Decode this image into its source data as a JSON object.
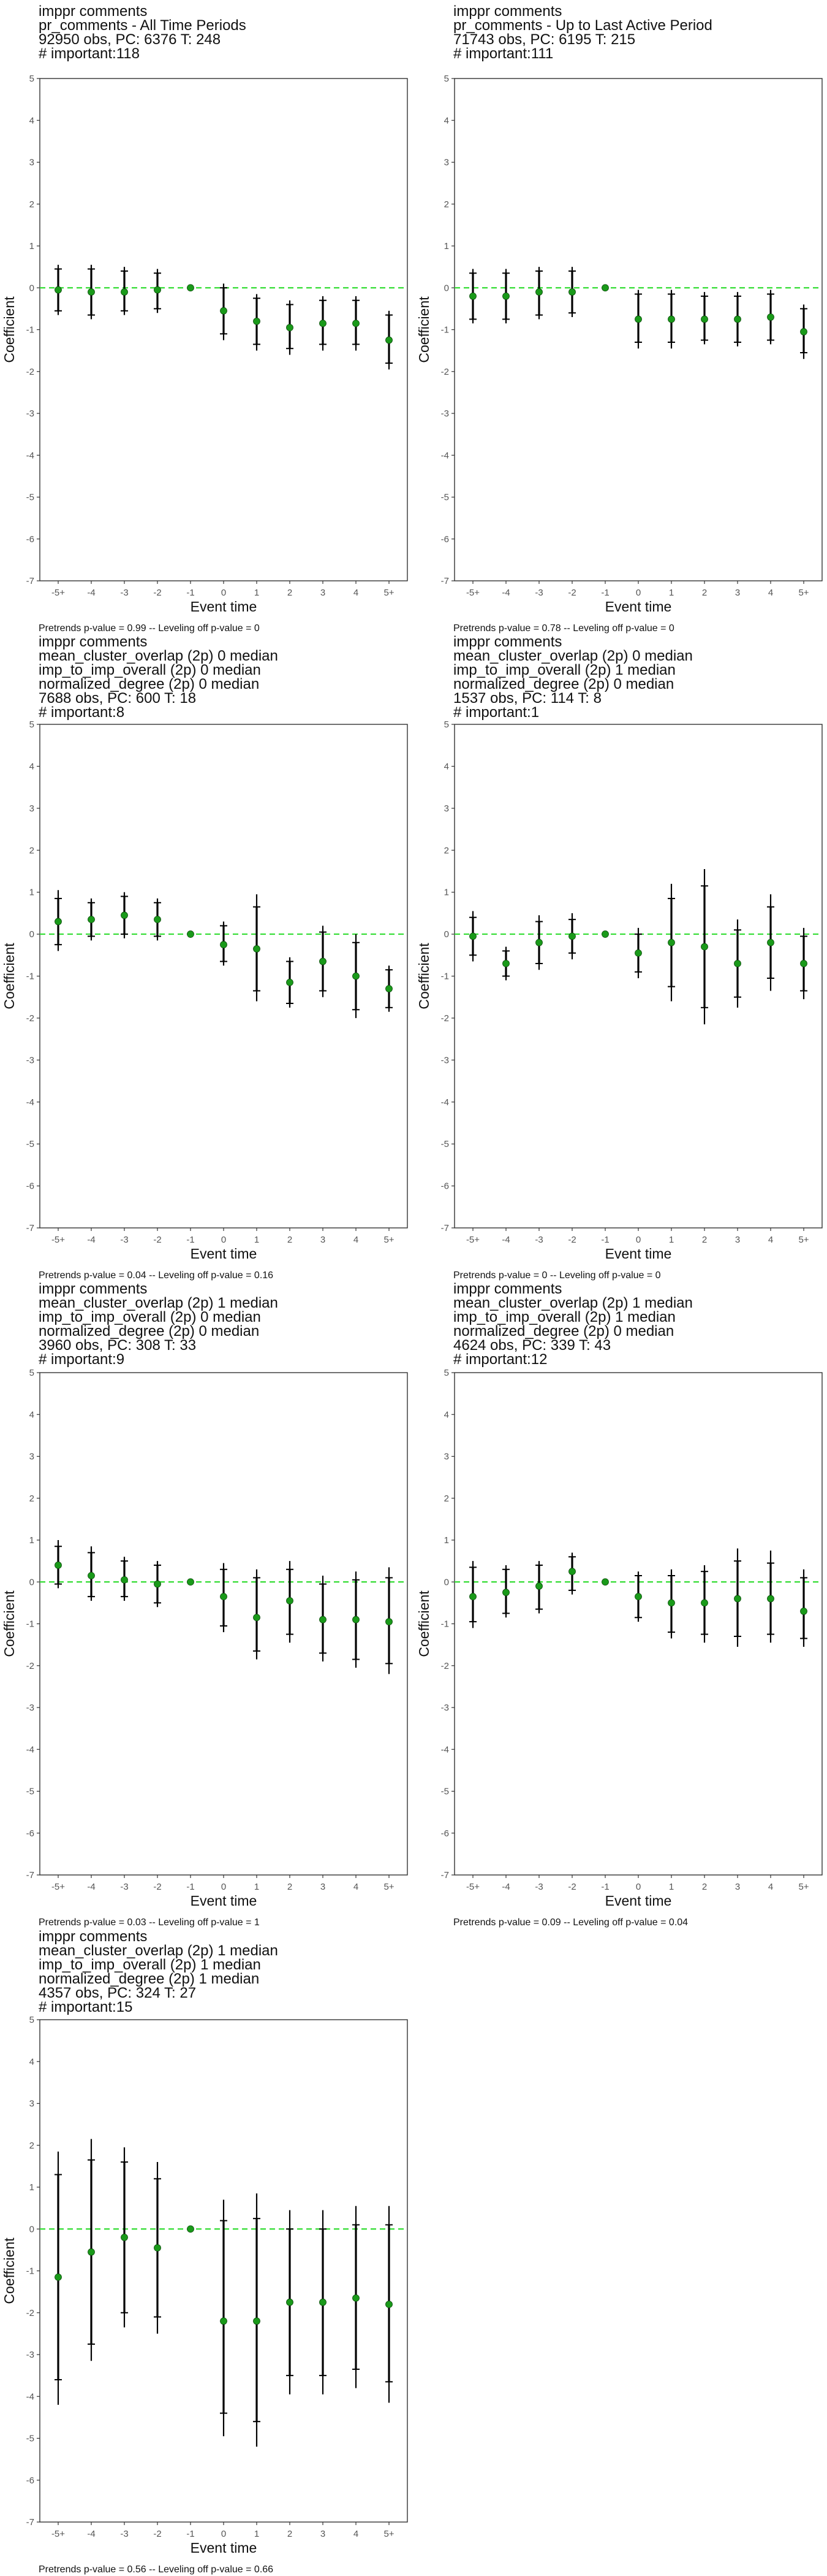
{
  "chart_data": [
    {
      "type": "scatter",
      "title_lines": [
        " imppr comments",
        "pr_comments - All Time Periods",
        "92950 obs, PC: 6376 T: 248",
        "# important:118"
      ],
      "xlabel": "Event time",
      "ylabel": "Coefficient",
      "categories": [
        "-5+",
        "-4",
        "-3",
        "-2",
        "-1",
        "0",
        "1",
        "2",
        "3",
        "4",
        "5+"
      ],
      "ylim": [
        -7,
        5
      ],
      "yticks": [
        "-7",
        "-6",
        "-5",
        "-4",
        "-3",
        "-2",
        "-1",
        "0",
        "1",
        "2",
        "3",
        "4",
        "5"
      ],
      "reference_line": 0,
      "estimates": [
        -0.05,
        -0.1,
        -0.1,
        -0.05,
        0,
        -0.55,
        -0.8,
        -0.95,
        -0.85,
        -0.85,
        -1.25
      ],
      "ci95_low": [
        -0.65,
        -0.75,
        -0.65,
        -0.6,
        0,
        -1.25,
        -1.5,
        -1.6,
        -1.5,
        -1.5,
        -1.95
      ],
      "ci95_high": [
        0.55,
        0.55,
        0.5,
        0.45,
        0,
        0.1,
        -0.15,
        -0.3,
        -0.2,
        -0.2,
        -0.55
      ],
      "ci90_low": [
        -0.55,
        -0.65,
        -0.55,
        -0.5,
        0,
        -1.1,
        -1.35,
        -1.45,
        -1.35,
        -1.35,
        -1.8
      ],
      "ci90_high": [
        0.45,
        0.45,
        0.4,
        0.35,
        0,
        0,
        -0.25,
        -0.4,
        -0.3,
        -0.3,
        -0.65
      ],
      "footnote": "Pretrends p-value = 0.99 -- Leveling off p-value = 0"
    },
    {
      "type": "scatter",
      "title_lines": [
        " imppr comments",
        "pr_comments - Up to Last Active Period",
        "71743 obs, PC: 6195 T: 215",
        "# important:111"
      ],
      "xlabel": "Event time",
      "ylabel": "Coefficient",
      "categories": [
        "-5+",
        "-4",
        "-3",
        "-2",
        "-1",
        "0",
        "1",
        "2",
        "3",
        "4",
        "5+"
      ],
      "ylim": [
        -7,
        5
      ],
      "yticks": [
        "-7",
        "-6",
        "-5",
        "-4",
        "-3",
        "-2",
        "-1",
        "0",
        "1",
        "2",
        "3",
        "4",
        "5"
      ],
      "reference_line": 0,
      "estimates": [
        -0.2,
        -0.2,
        -0.1,
        -0.1,
        0,
        -0.75,
        -0.75,
        -0.75,
        -0.75,
        -0.7,
        -1.05
      ],
      "ci95_low": [
        -0.85,
        -0.85,
        -0.75,
        -0.7,
        0,
        -1.45,
        -1.45,
        -1.35,
        -1.4,
        -1.35,
        -1.7
      ],
      "ci95_high": [
        0.45,
        0.45,
        0.5,
        0.5,
        0,
        -0.05,
        -0.05,
        -0.1,
        -0.1,
        -0.05,
        -0.4
      ],
      "ci90_low": [
        -0.75,
        -0.75,
        -0.65,
        -0.6,
        0,
        -1.3,
        -1.3,
        -1.25,
        -1.3,
        -1.25,
        -1.55
      ],
      "ci90_high": [
        0.35,
        0.35,
        0.4,
        0.4,
        0,
        -0.15,
        -0.15,
        -0.2,
        -0.2,
        -0.15,
        -0.5
      ],
      "footnote": "Pretrends p-value = 0.78 -- Leveling off p-value = 0"
    },
    {
      "type": "scatter",
      "title_lines": [
        " imppr comments",
        "mean_cluster_overlap (2p) 0 median",
        "imp_to_imp_overall (2p) 0 median",
        "normalized_degree (2p) 0 median",
        "7688 obs, PC: 600 T: 18",
        "# important:8"
      ],
      "xlabel": "Event time",
      "ylabel": "Coefficient",
      "categories": [
        "-5+",
        "-4",
        "-3",
        "-2",
        "-1",
        "0",
        "1",
        "2",
        "3",
        "4",
        "5+"
      ],
      "ylim": [
        -7,
        5
      ],
      "yticks": [
        "-7",
        "-6",
        "-5",
        "-4",
        "-3",
        "-2",
        "-1",
        "0",
        "1",
        "2",
        "3",
        "4",
        "5"
      ],
      "reference_line": 0,
      "estimates": [
        0.3,
        0.35,
        0.45,
        0.35,
        0,
        -0.25,
        -0.35,
        -1.15,
        -0.65,
        -1.0,
        -1.3
      ],
      "ci95_low": [
        -0.4,
        -0.15,
        -0.1,
        -0.15,
        0,
        -0.75,
        -1.6,
        -1.75,
        -1.5,
        -2.0,
        -1.85
      ],
      "ci95_high": [
        1.05,
        0.85,
        1.0,
        0.85,
        0,
        0.3,
        0.95,
        -0.55,
        0.2,
        0.0,
        -0.75
      ],
      "ci90_low": [
        -0.25,
        -0.05,
        0.0,
        -0.05,
        0,
        -0.65,
        -1.35,
        -1.65,
        -1.35,
        -1.8,
        -1.75
      ],
      "ci90_high": [
        0.85,
        0.75,
        0.9,
        0.75,
        0,
        0.2,
        0.65,
        -0.65,
        0.05,
        -0.2,
        -0.85
      ],
      "footnote": "Pretrends p-value = 0.04 -- Leveling off p-value = 0.16"
    },
    {
      "type": "scatter",
      "title_lines": [
        " imppr comments",
        "mean_cluster_overlap (2p) 0 median",
        "imp_to_imp_overall (2p) 1 median",
        "normalized_degree (2p) 0 median",
        "1537 obs, PC: 114 T: 8",
        "# important:1"
      ],
      "xlabel": "Event time",
      "ylabel": "Coefficient",
      "categories": [
        "-5+",
        "-4",
        "-3",
        "-2",
        "-1",
        "0",
        "1",
        "2",
        "3",
        "4",
        "5+"
      ],
      "ylim": [
        -7,
        5
      ],
      "yticks": [
        "-7",
        "-6",
        "-5",
        "-4",
        "-3",
        "-2",
        "-1",
        "0",
        "1",
        "2",
        "3",
        "4",
        "5"
      ],
      "reference_line": 0,
      "estimates": [
        -0.05,
        -0.7,
        -0.2,
        -0.05,
        0,
        -0.45,
        -0.2,
        -0.3,
        -0.7,
        -0.2,
        -0.7
      ],
      "ci95_low": [
        -0.65,
        -1.1,
        -0.85,
        -0.6,
        0,
        -1.05,
        -1.6,
        -2.15,
        -1.75,
        -1.35,
        -1.55
      ],
      "ci95_high": [
        0.55,
        -0.3,
        0.45,
        0.5,
        0,
        0.15,
        1.2,
        1.55,
        0.35,
        0.95,
        0.15
      ],
      "ci90_low": [
        -0.5,
        -1.0,
        -0.7,
        -0.45,
        0,
        -0.9,
        -1.25,
        -1.75,
        -1.5,
        -1.05,
        -1.35
      ],
      "ci90_high": [
        0.4,
        -0.4,
        0.3,
        0.35,
        0,
        0.0,
        0.85,
        1.15,
        0.1,
        0.65,
        -0.05
      ],
      "footnote": "Pretrends p-value = 0 -- Leveling off p-value = 0"
    },
    {
      "type": "scatter",
      "title_lines": [
        " imppr comments",
        "mean_cluster_overlap (2p) 1 median",
        "imp_to_imp_overall (2p) 0 median",
        "normalized_degree (2p) 0 median",
        "3960 obs, PC: 308 T: 33",
        "# important:9"
      ],
      "xlabel": "Event time",
      "ylabel": "Coefficient",
      "categories": [
        "-5+",
        "-4",
        "-3",
        "-2",
        "-1",
        "0",
        "1",
        "2",
        "3",
        "4",
        "5+"
      ],
      "ylim": [
        -7,
        5
      ],
      "yticks": [
        "-7",
        "-6",
        "-5",
        "-4",
        "-3",
        "-2",
        "-1",
        "0",
        "1",
        "2",
        "3",
        "4",
        "5"
      ],
      "reference_line": 0,
      "estimates": [
        0.4,
        0.15,
        0.05,
        -0.05,
        0,
        -0.35,
        -0.85,
        -0.45,
        -0.9,
        -0.9,
        -0.95
      ],
      "ci95_low": [
        -0.15,
        -0.45,
        -0.45,
        -0.6,
        0,
        -1.2,
        -1.85,
        -1.45,
        -1.9,
        -2.05,
        -2.2
      ],
      "ci95_high": [
        1.0,
        0.85,
        0.6,
        0.5,
        0,
        0.45,
        0.3,
        0.5,
        0.15,
        0.25,
        0.35
      ],
      "ci90_low": [
        -0.05,
        -0.35,
        -0.35,
        -0.5,
        0,
        -1.05,
        -1.65,
        -1.25,
        -1.7,
        -1.85,
        -1.95
      ],
      "ci90_high": [
        0.85,
        0.7,
        0.5,
        0.4,
        0,
        0.3,
        0.1,
        0.3,
        -0.05,
        0.05,
        0.1
      ],
      "footnote": "Pretrends p-value = 0.03 -- Leveling off p-value = 1"
    },
    {
      "type": "scatter",
      "title_lines": [
        " imppr comments",
        "mean_cluster_overlap (2p) 1 median",
        "imp_to_imp_overall (2p) 1 median",
        "normalized_degree (2p) 0 median",
        "4624 obs, PC: 339 T: 43",
        "# important:12"
      ],
      "xlabel": "Event time",
      "ylabel": "Coefficient",
      "categories": [
        "-5+",
        "-4",
        "-3",
        "-2",
        "-1",
        "0",
        "1",
        "2",
        "3",
        "4",
        "5+"
      ],
      "ylim": [
        -7,
        5
      ],
      "yticks": [
        "-7",
        "-6",
        "-5",
        "-4",
        "-3",
        "-2",
        "-1",
        "0",
        "1",
        "2",
        "3",
        "4",
        "5"
      ],
      "reference_line": 0,
      "estimates": [
        -0.35,
        -0.25,
        -0.1,
        0.25,
        0,
        -0.35,
        -0.5,
        -0.5,
        -0.4,
        -0.4,
        -0.7
      ],
      "ci95_low": [
        -1.1,
        -0.85,
        -0.75,
        -0.3,
        0,
        -0.95,
        -1.35,
        -1.45,
        -1.55,
        -1.45,
        -1.55
      ],
      "ci95_high": [
        0.5,
        0.4,
        0.5,
        0.7,
        0,
        0.25,
        0.3,
        0.4,
        0.8,
        0.75,
        0.3
      ],
      "ci90_low": [
        -0.95,
        -0.75,
        -0.65,
        -0.2,
        0,
        -0.85,
        -1.2,
        -1.25,
        -1.3,
        -1.25,
        -1.35
      ],
      "ci90_high": [
        0.35,
        0.3,
        0.4,
        0.6,
        0,
        0.15,
        0.15,
        0.25,
        0.5,
        0.45,
        0.1
      ],
      "footnote": "Pretrends p-value = 0.09 -- Leveling off p-value = 0.04"
    },
    {
      "type": "scatter",
      "title_lines": [
        " imppr comments",
        "mean_cluster_overlap (2p) 1 median",
        "imp_to_imp_overall (2p) 1 median",
        "normalized_degree (2p) 1 median",
        "4357 obs, PC: 324 T: 27",
        "# important:15"
      ],
      "xlabel": "Event time",
      "ylabel": "Coefficient",
      "categories": [
        "-5+",
        "-4",
        "-3",
        "-2",
        "-1",
        "0",
        "1",
        "2",
        "3",
        "4",
        "5+"
      ],
      "ylim": [
        -7,
        5
      ],
      "yticks": [
        "-7",
        "-6",
        "-5",
        "-4",
        "-3",
        "-2",
        "-1",
        "0",
        "1",
        "2",
        "3",
        "4",
        "5"
      ],
      "reference_line": 0,
      "estimates": [
        -1.15,
        -0.55,
        -0.2,
        -0.45,
        0,
        -2.2,
        -2.2,
        -1.75,
        -1.75,
        -1.65,
        -1.8
      ],
      "ci95_low": [
        -4.2,
        -3.15,
        -2.35,
        -2.5,
        0,
        -4.95,
        -5.2,
        -3.95,
        -3.95,
        -3.8,
        -4.15
      ],
      "ci95_high": [
        1.85,
        2.15,
        1.95,
        1.6,
        0,
        0.7,
        0.85,
        0.45,
        0.45,
        0.55,
        0.55
      ],
      "ci90_low": [
        -3.6,
        -2.75,
        -2.0,
        -2.1,
        0,
        -4.4,
        -4.6,
        -3.5,
        -3.5,
        -3.35,
        -3.65
      ],
      "ci90_high": [
        1.3,
        1.65,
        1.6,
        1.2,
        0,
        0.2,
        0.25,
        0.0,
        0.0,
        0.1,
        0.1
      ],
      "footnote": "Pretrends p-value = 0.56 -- Leveling off p-value = 0.66"
    }
  ]
}
